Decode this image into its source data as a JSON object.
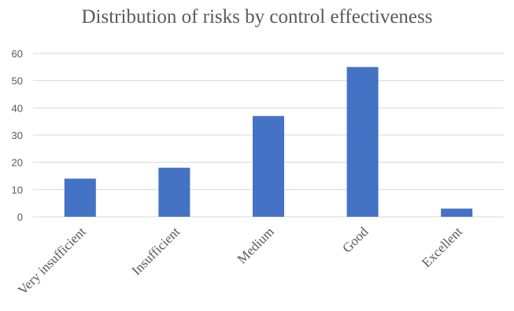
{
  "chart_data": {
    "type": "bar",
    "title": "Distribution of risks by control effectiveness",
    "xlabel": "",
    "ylabel": "",
    "categories": [
      "Very insufficient",
      "Insufficient",
      "Medium",
      "Good",
      "Excellent"
    ],
    "values": [
      14,
      18,
      37,
      55,
      3
    ],
    "ylim": [
      0,
      60
    ],
    "yticks": [
      "0",
      "10",
      "20",
      "30",
      "40",
      "50",
      "60"
    ],
    "grid": true,
    "legend": "none",
    "bar_color": "#4472C4",
    "grid_color": "#D9D9D9",
    "axis_line_color": "#D9D9D9",
    "text_color": "#595959"
  }
}
